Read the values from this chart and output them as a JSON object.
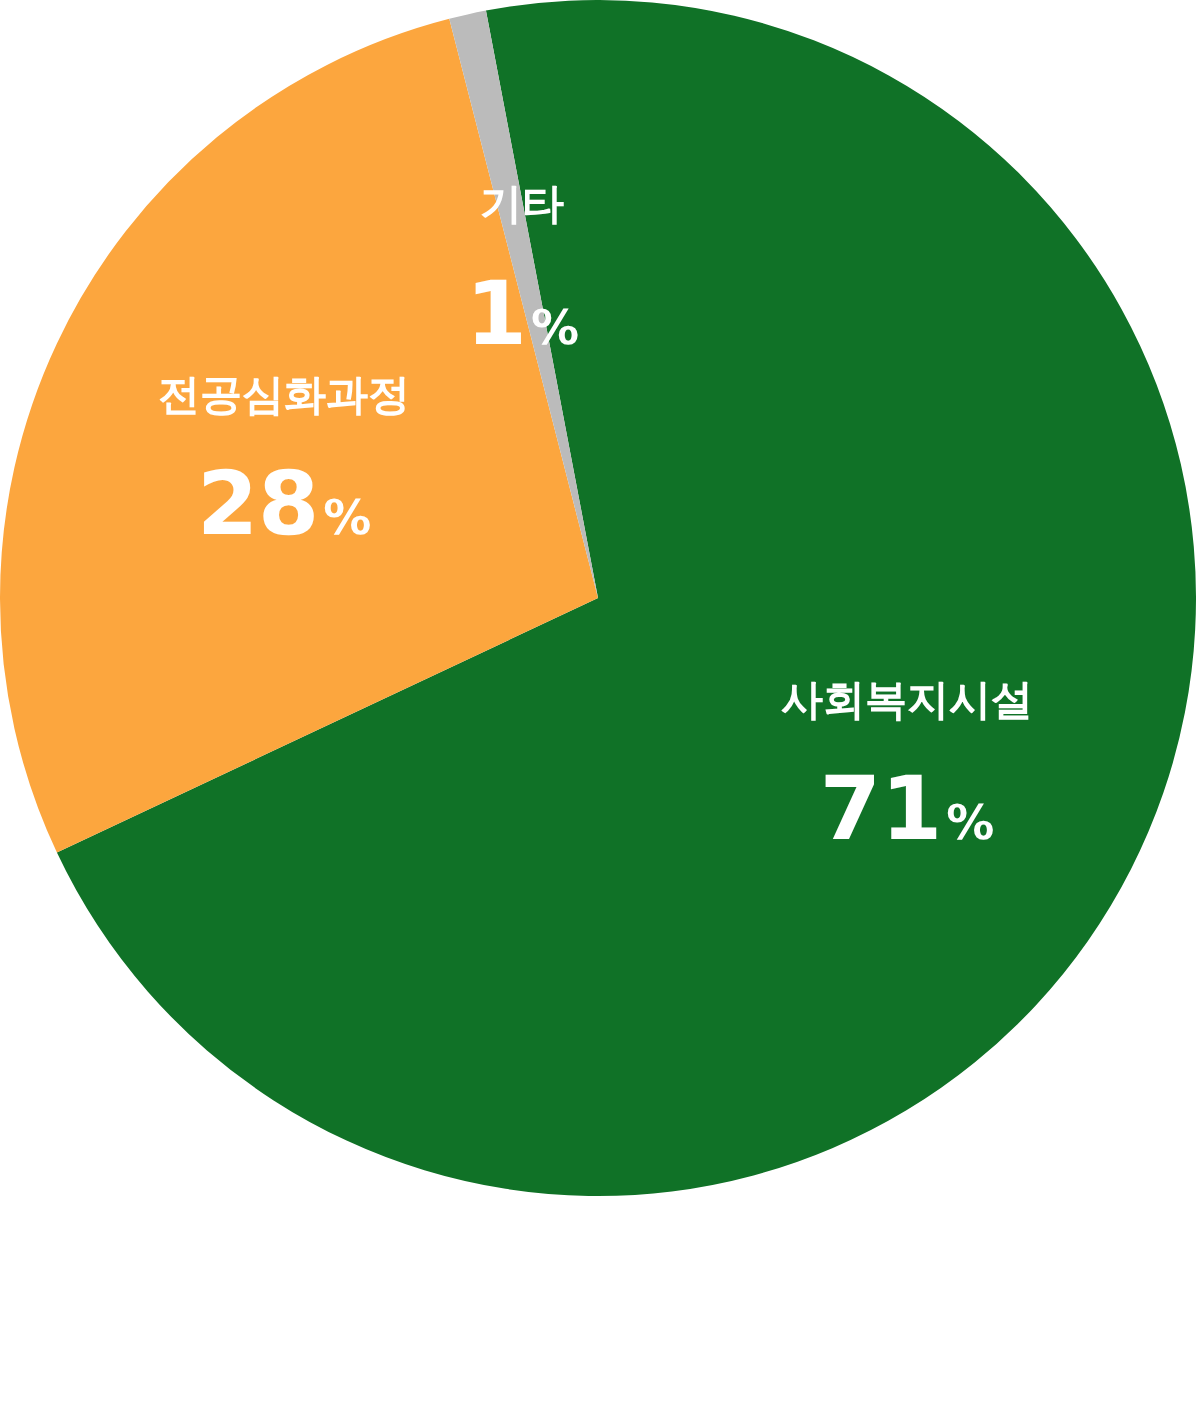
{
  "chart_data": {
    "type": "pie",
    "categories": [
      "사회복지시설",
      "전공심화과정",
      "기타"
    ],
    "values": [
      71,
      28,
      1
    ],
    "value_labels": [
      "71%",
      "28%",
      "1%"
    ],
    "colors": [
      "#107227",
      "#fca63e",
      "#bbbbbb"
    ],
    "legend": false
  }
}
